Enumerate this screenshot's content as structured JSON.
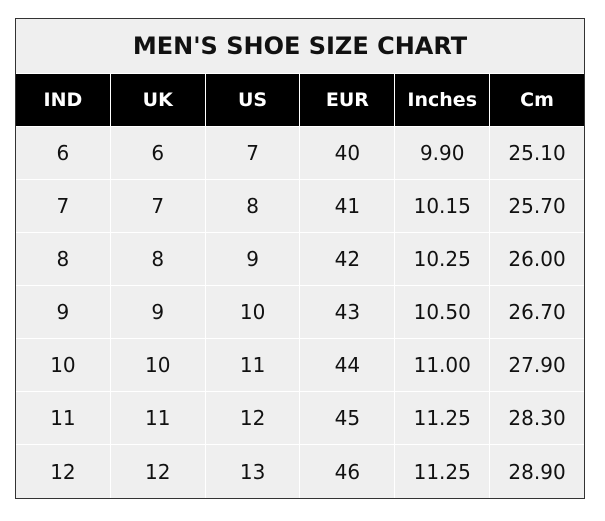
{
  "chart_data": {
    "type": "table",
    "title": "MEN'S SHOE SIZE CHART",
    "columns": [
      "IND",
      "UK",
      "US",
      "EUR",
      "Inches",
      "Cm"
    ],
    "rows": [
      [
        "6",
        "6",
        "7",
        "40",
        "9.90",
        "25.10"
      ],
      [
        "7",
        "7",
        "8",
        "41",
        "10.15",
        "25.70"
      ],
      [
        "8",
        "8",
        "9",
        "42",
        "10.25",
        "26.00"
      ],
      [
        "9",
        "9",
        "10",
        "43",
        "10.50",
        "26.70"
      ],
      [
        "10",
        "10",
        "11",
        "44",
        "11.00",
        "27.90"
      ],
      [
        "11",
        "11",
        "12",
        "45",
        "11.25",
        "28.30"
      ],
      [
        "12",
        "12",
        "13",
        "46",
        "11.25",
        "28.90"
      ]
    ],
    "colors": {
      "header_bg": "#000000",
      "header_text": "#ffffff",
      "body_bg": "#efefef"
    }
  }
}
